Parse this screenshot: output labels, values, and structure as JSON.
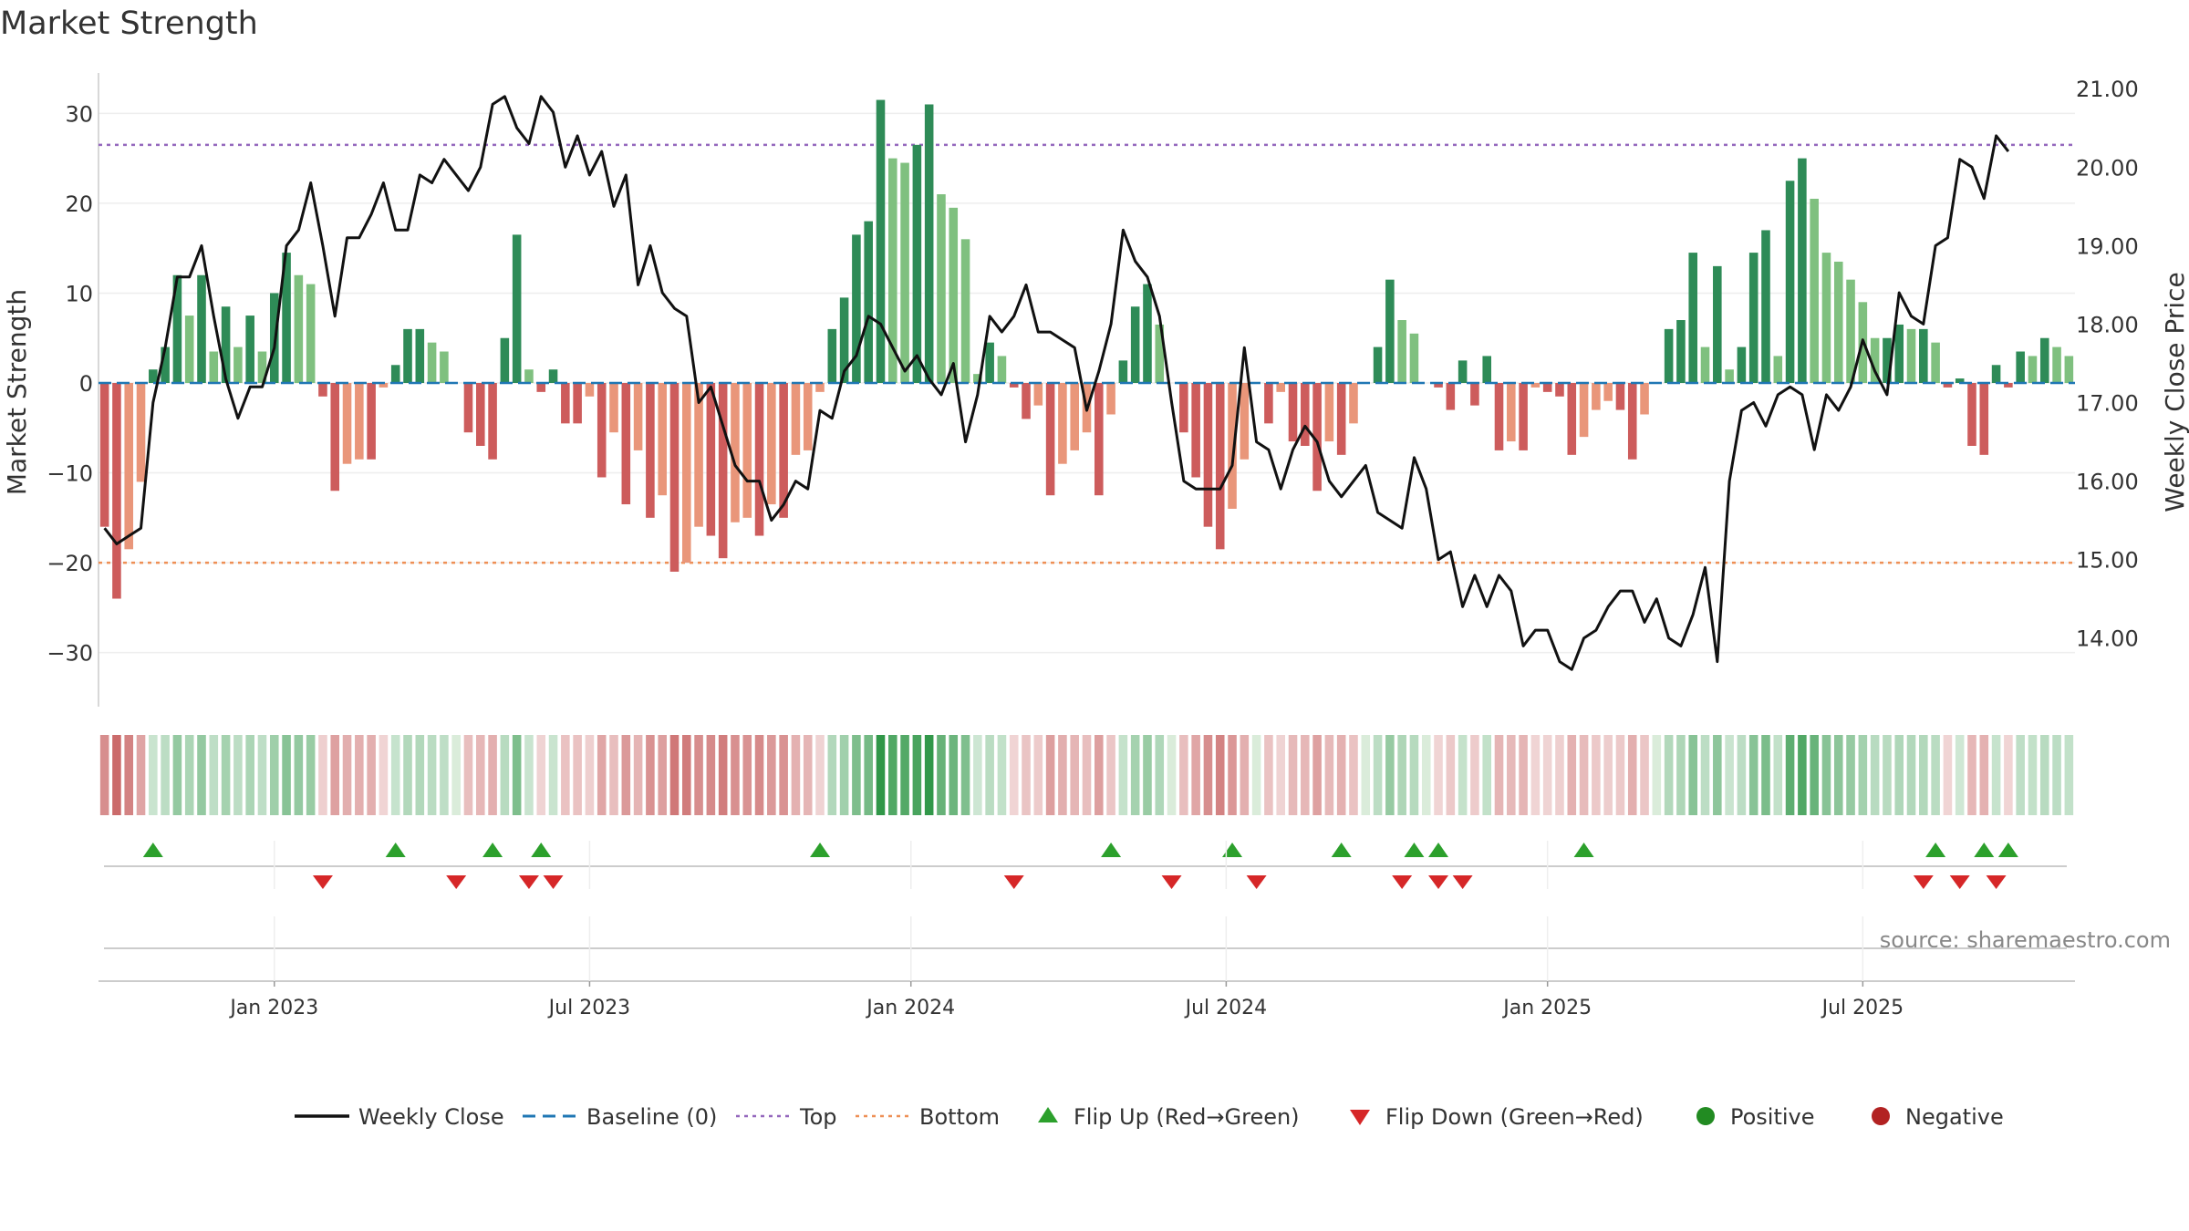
{
  "chart_data": {
    "type": "bar+line",
    "title": "Market Strength",
    "ylabel_left": "Market Strength",
    "ylabel_right": "Weekly Close Price",
    "source": "source: sharemaestro.com",
    "left_axis": {
      "ylim": [
        -34.5,
        34.5
      ],
      "ticks": [
        30,
        20,
        10,
        0,
        -10,
        -20,
        -30
      ],
      "tick_labels": [
        "30",
        "20",
        "10",
        "0",
        "−10",
        "−20",
        "−30"
      ]
    },
    "right_axis": {
      "ylim": [
        13.3,
        21.2
      ],
      "ticks": [
        21.0,
        20.0,
        19.0,
        18.0,
        17.0,
        16.0,
        15.0,
        14.0
      ],
      "tick_labels": [
        "21.00",
        "20.00",
        "19.00",
        "18.00",
        "17.00",
        "16.00",
        "15.00",
        "14.00"
      ]
    },
    "x_ticks": [
      {
        "label": "Jan 2023",
        "week": 14.5
      },
      {
        "label": "Jul 2023",
        "week": 40.5
      },
      {
        "label": "Jan 2024",
        "week": 67
      },
      {
        "label": "Jul 2024",
        "week": 93
      },
      {
        "label": "Jan 2025",
        "week": 119.5
      },
      {
        "label": "Jul 2025",
        "week": 145.5
      }
    ],
    "top_line": 26.5,
    "bottom_line": -20,
    "baseline": 0,
    "strength": [
      -16,
      -24,
      -18.5,
      -11,
      1.5,
      4,
      12,
      7.5,
      12,
      3.5,
      8.5,
      4,
      7.5,
      3.5,
      10,
      14.5,
      12,
      11,
      -1.5,
      -12,
      -9,
      -8.5,
      -8.5,
      -0.5,
      2,
      6,
      6,
      4.5,
      3.5,
      0,
      -5.5,
      -7,
      -8.5,
      5,
      16.5,
      1.5,
      -1,
      1.5,
      -4.5,
      -4.5,
      -1.5,
      -10.5,
      -5.5,
      -13.5,
      -7.5,
      -15,
      -12.5,
      -21,
      -20,
      -16,
      -17,
      -19.5,
      -15.5,
      -15,
      -17,
      -13.5,
      -15,
      -8,
      -7.5,
      -1,
      6,
      9.5,
      16.5,
      18,
      31.5,
      25,
      24.5,
      26.5,
      31,
      21,
      19.5,
      16,
      1,
      4.5,
      3,
      -0.5,
      -4,
      -2.5,
      -12.5,
      -9,
      -7.5,
      -5.5,
      -12.5,
      -3.5,
      2.5,
      8.5,
      11,
      6.5,
      0,
      -5.5,
      -10.5,
      -16,
      -18.5,
      -14,
      -8.5,
      0,
      -4.5,
      -1,
      -6.5,
      -7,
      -12,
      -6.5,
      -8,
      -4.5,
      0,
      4,
      11.5,
      7,
      5.5,
      0,
      -0.5,
      -3,
      2.5,
      -2.5,
      3,
      -7.5,
      -6.5,
      -7.5,
      -0.5,
      -1,
      -1.5,
      -8,
      -6,
      -3,
      -2,
      -3,
      -8.5,
      -3.5,
      0,
      6,
      7,
      14.5,
      4,
      13,
      1.5,
      4,
      14.5,
      17,
      3,
      22.5,
      25,
      20.5,
      14.5,
      13.5,
      11.5,
      9,
      5,
      5,
      6.5,
      6,
      6,
      4.5,
      -0.5,
      0.5,
      -7,
      -8,
      2,
      -0.5,
      3.5,
      3,
      5,
      4,
      3
    ],
    "close": [
      15.4,
      15.2,
      15.3,
      15.4,
      17.0,
      17.7,
      18.6,
      18.6,
      19.0,
      18.1,
      17.3,
      16.8,
      17.2,
      17.2,
      17.7,
      19.0,
      19.2,
      19.8,
      19.0,
      18.1,
      19.1,
      19.1,
      19.4,
      19.8,
      19.2,
      19.2,
      19.9,
      19.8,
      20.1,
      19.9,
      19.7,
      20.0,
      20.8,
      20.9,
      20.5,
      20.3,
      20.9,
      20.7,
      20.0,
      20.4,
      19.9,
      20.2,
      19.5,
      19.9,
      18.5,
      19.0,
      18.4,
      18.2,
      18.1,
      17.0,
      17.2,
      16.7,
      16.2,
      16.0,
      16.0,
      15.5,
      15.7,
      16.0,
      15.9,
      16.9,
      16.8,
      17.4,
      17.6,
      18.1,
      18.0,
      17.7,
      17.4,
      17.6,
      17.3,
      17.1,
      17.5,
      16.5,
      17.1,
      18.1,
      17.9,
      18.1,
      18.5,
      17.9,
      17.9,
      17.8,
      17.7,
      16.9,
      17.4,
      18.0,
      19.2,
      18.8,
      18.6,
      18.1,
      17.0,
      16.0,
      15.9,
      15.9,
      15.9,
      16.2,
      17.7,
      16.5,
      16.4,
      15.9,
      16.4,
      16.7,
      16.5,
      16.0,
      15.8,
      16.0,
      16.2,
      15.6,
      15.5,
      15.4,
      16.3,
      15.9,
      15.0,
      15.1,
      14.4,
      14.8,
      14.4,
      14.8,
      14.6,
      13.9,
      14.1,
      14.1,
      13.7,
      13.6,
      14.0,
      14.1,
      14.4,
      14.6,
      14.6,
      14.2,
      14.5,
      14.0,
      13.9,
      14.3,
      14.9,
      13.7,
      16.0,
      16.9,
      17.0,
      16.7,
      17.1,
      17.2,
      17.1,
      16.4,
      17.1,
      16.9,
      17.2,
      17.8,
      17.4,
      17.1,
      18.4,
      18.1,
      18.0,
      19.0,
      19.1,
      20.1,
      20.0,
      19.6,
      20.4,
      20.2
    ],
    "flip_up_weeks": [
      4,
      24,
      32,
      36,
      59,
      83,
      93,
      102,
      108,
      110,
      122,
      151,
      155,
      157
    ],
    "flip_down_weeks": [
      18,
      29,
      35,
      37,
      75,
      88,
      95,
      107,
      110,
      112,
      150,
      153,
      156
    ],
    "legend": [
      {
        "key": "weekly-close",
        "label": "Weekly Close",
        "color": "#111111"
      },
      {
        "key": "baseline",
        "label": "Baseline (0)",
        "color": "#1f77b4"
      },
      {
        "key": "top",
        "label": "Top",
        "color": "#9467bd"
      },
      {
        "key": "bottom",
        "label": "Bottom",
        "color": "#ee8f55"
      },
      {
        "key": "flip-up",
        "label": "Flip Up (Red→Green)",
        "color": "#2ca02c"
      },
      {
        "key": "flip-down",
        "label": "Flip Down (Green→Red)",
        "color": "#d62728"
      },
      {
        "key": "positive",
        "label": "Positive",
        "color": "#228b22"
      },
      {
        "key": "negative",
        "label": "Negative",
        "color": "#b22222"
      }
    ],
    "colors": {
      "bar_pos_rising": "#2e8b57",
      "bar_pos_falling": "#7fc07f",
      "bar_neg_falling": "#cd5c5c",
      "bar_neg_rising": "#e9967a",
      "price_line": "#111111",
      "grid": "#eeeeee",
      "axis_line": "#cccccc"
    }
  }
}
